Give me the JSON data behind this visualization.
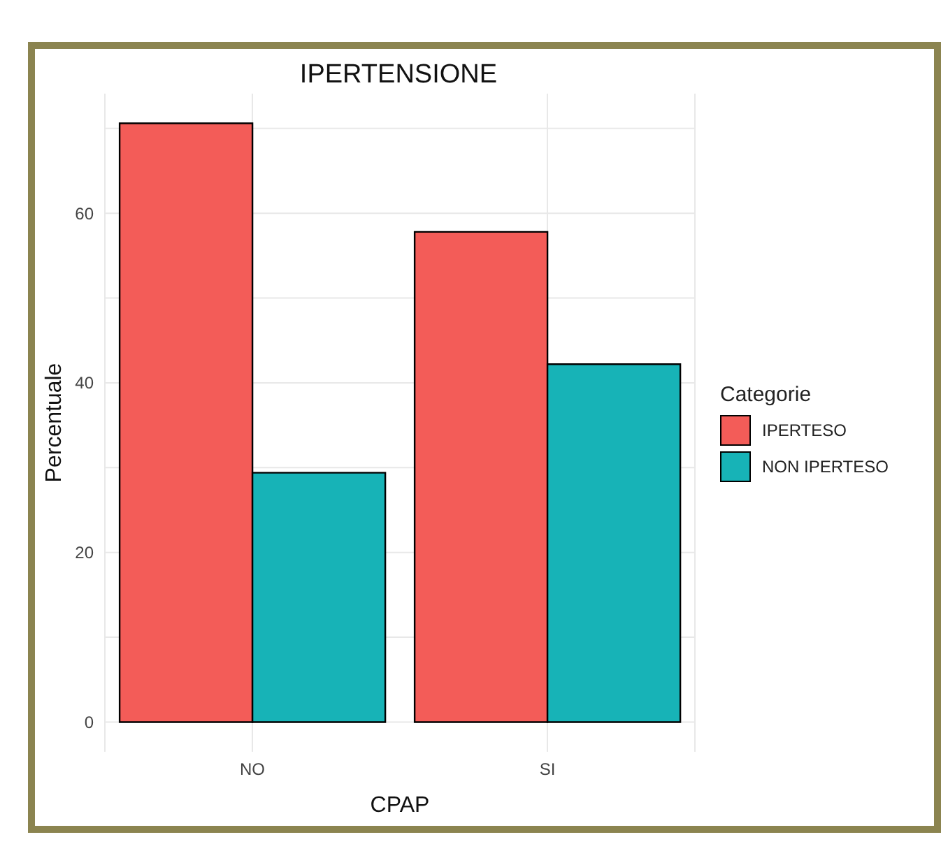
{
  "chart_data": {
    "type": "bar",
    "title": "IPERTENSIONE",
    "xlabel": "CPAP",
    "ylabel": "Percentuale",
    "legend_title": "Categorie",
    "categories": [
      "NO",
      "SI"
    ],
    "series": [
      {
        "name": "IPERTESO",
        "color": "#f35c58",
        "values": [
          70.6,
          57.8
        ]
      },
      {
        "name": "NON IPERTESO",
        "color": "#17b3b7",
        "values": [
          29.4,
          42.2
        ]
      }
    ],
    "ylim": [
      -3.5,
      74.1
    ],
    "yticks": [
      0,
      {
        "value": 10,
        "label": null
      },
      20,
      {
        "value": 30,
        "label": null
      },
      40,
      {
        "value": 50,
        "label": null
      },
      60,
      {
        "value": 70,
        "label": null
      }
    ],
    "grid": true,
    "legend": "right"
  }
}
